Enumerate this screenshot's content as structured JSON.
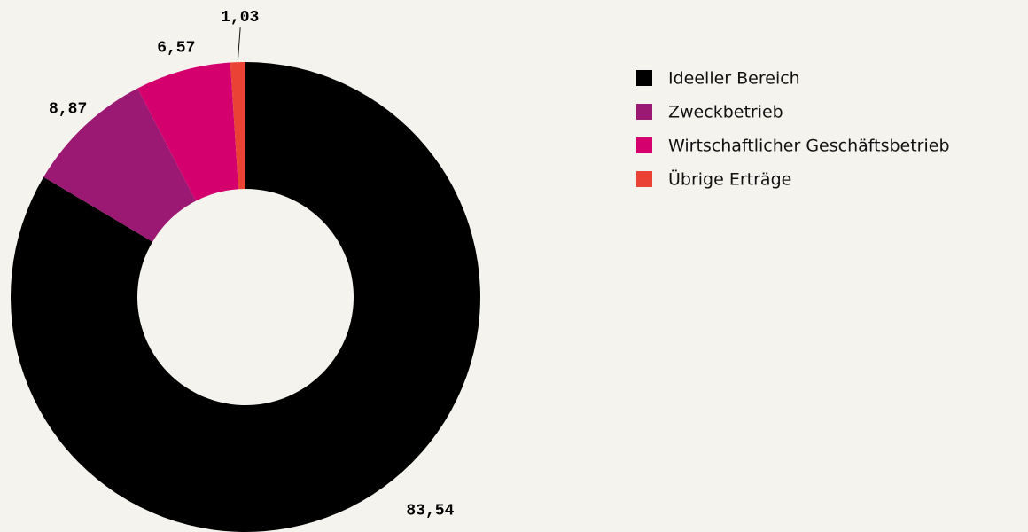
{
  "chart_data": {
    "type": "donut",
    "categories": [
      "Ideeller Bereich",
      "Zweckbetrieb",
      "Wirtschaftlicher Geschäftsbetrieb",
      "Übrige Erträge"
    ],
    "values": [
      83.54,
      8.87,
      6.57,
      1.03
    ],
    "value_labels": [
      "83,54",
      "8,87",
      "6,57",
      "1,03"
    ],
    "colors": [
      "#000000",
      "#9b1873",
      "#d4006e",
      "#ea4335"
    ],
    "legend": "right"
  }
}
